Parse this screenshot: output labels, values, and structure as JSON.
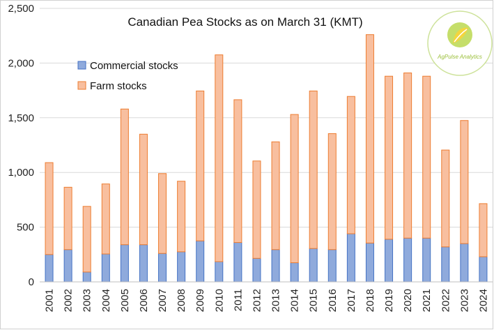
{
  "chart_data": {
    "type": "bar",
    "stacked": true,
    "title": "Canadian Pea Stocks as on March 31 (KMT)",
    "categories": [
      "2001",
      "2002",
      "2003",
      "2004",
      "2005",
      "2006",
      "2007",
      "2008",
      "2009",
      "2010",
      "2011",
      "2012",
      "2013",
      "2014",
      "2015",
      "2016",
      "2017",
      "2018",
      "2019",
      "2020",
      "2021",
      "2022",
      "2023",
      "2024"
    ],
    "series": [
      {
        "name": "Commercial stocks",
        "color": "#8faadc",
        "edge": "#4472c4",
        "values": [
          250,
          295,
          90,
          255,
          340,
          340,
          260,
          275,
          375,
          185,
          360,
          215,
          295,
          175,
          305,
          295,
          440,
          355,
          390,
          400,
          400,
          320,
          350,
          230
        ]
      },
      {
        "name": "Farm stocks",
        "color": "#f8bf9f",
        "edge": "#ed7d31",
        "values": [
          840,
          570,
          600,
          640,
          1240,
          1010,
          730,
          645,
          1370,
          1890,
          1305,
          890,
          985,
          1355,
          1440,
          1060,
          1255,
          1905,
          1490,
          1510,
          1480,
          885,
          1125,
          485
        ]
      }
    ],
    "ylim": [
      0,
      2500
    ],
    "yticks": [
      0,
      500,
      1000,
      1500,
      2000,
      2500
    ],
    "ytick_labels": [
      "0",
      "500",
      "1,000",
      "1,500",
      "2,000",
      "2,500"
    ],
    "grid": true,
    "legend_position": "top-left",
    "logo": {
      "name": "agpulse-logo",
      "text": "AgPulse Analytics"
    }
  }
}
